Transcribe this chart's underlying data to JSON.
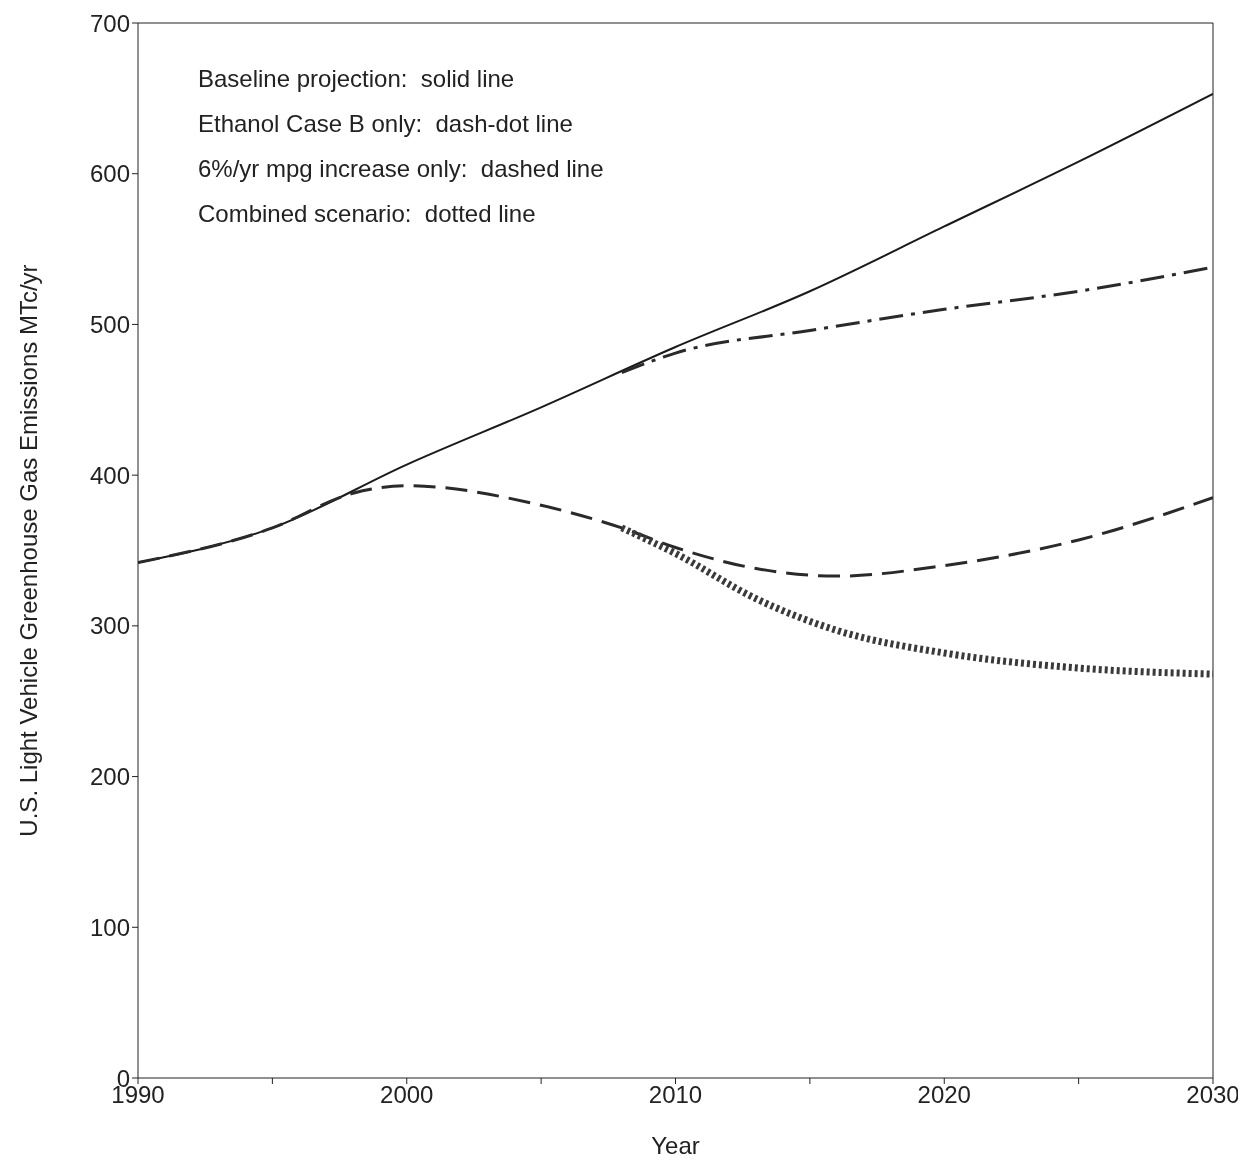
{
  "chart_data": {
    "type": "line",
    "xlabel": "Year",
    "ylabel": "U.S. Light Vehicle Greenhouse Gas Emissions  MTc/yr",
    "annotations": [
      "Baseline projection:  solid line",
      "Ethanol Case B only:  dash-dot line",
      "6%/yr mpg increase only:  dashed line",
      "Combined scenario:  dotted line"
    ],
    "xlim": [
      1990,
      2030
    ],
    "xticks": [
      1990,
      {
        "value": 1995,
        "label": null
      },
      2000,
      {
        "value": 2005,
        "label": null
      },
      2010,
      {
        "value": 2015,
        "label": null
      },
      2020,
      {
        "value": 2025,
        "label": null
      },
      2030
    ],
    "ylim": [
      0,
      700
    ],
    "yticks": [
      0,
      100,
      200,
      300,
      400,
      500,
      600,
      700
    ],
    "series": [
      {
        "color": "#1a1a1a",
        "line_style": "solid",
        "x": [
          1990,
          1995,
          2000,
          2005,
          2010,
          2015,
          2020,
          2025,
          2030
        ],
        "values": [
          342,
          365,
          407,
          445,
          485,
          522,
          565,
          608,
          653
        ]
      },
      {
        "color": "#2a2a2a",
        "line_style": "dashdot",
        "x": [
          2008,
          2010,
          2015,
          2020,
          2025,
          2030
        ],
        "values": [
          468,
          481,
          496,
          510,
          522,
          538
        ]
      },
      {
        "color": "#2a2a2a",
        "line_style": "dashed",
        "x": [
          1990,
          1995,
          1998,
          2000,
          2005,
          2008,
          2010,
          2013,
          2016,
          2020,
          2025,
          2030
        ],
        "values": [
          342,
          365,
          388,
          393,
          380,
          365,
          352,
          338,
          333,
          340,
          357,
          385
        ]
      },
      {
        "color": "#3a3a3a",
        "line_style": "dotted",
        "x": [
          2008,
          2010,
          2013,
          2016,
          2020,
          2025,
          2030
        ],
        "values": [
          365,
          348,
          318,
          297,
          282,
          272,
          268
        ]
      }
    ]
  }
}
